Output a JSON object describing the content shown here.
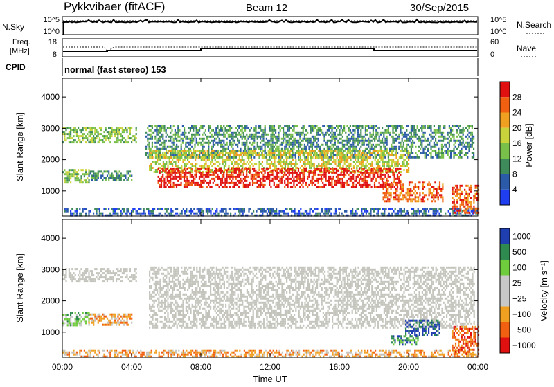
{
  "header": {
    "station": "Pykkvibaer (fitACF)",
    "beam": "Beam 12",
    "date": "30/Sep/2015"
  },
  "strip_panels": {
    "nsky": {
      "label": "N.Sky",
      "right_label": "N.Search",
      "tick_top": "10^5",
      "tick_bottom": "10^0",
      "right_tick_top": "10^5",
      "right_tick_bottom": "10^0"
    },
    "freq": {
      "label_line1": "Freq.",
      "label_line2": "[MHz]",
      "tick_top": "18",
      "tick_bottom": "8",
      "right_label": "Nave",
      "right_tick_top": "60",
      "right_tick_bottom": "0"
    },
    "cpid": {
      "label": "CPID",
      "text": "normal (fast stereo) 153"
    }
  },
  "colors": {
    "power_scale": [
      "#1f3ef0",
      "#2a5aa8",
      "#3f8a5a",
      "#79c04a",
      "#c9d43c",
      "#f0a020",
      "#f06010",
      "#e01010"
    ],
    "velocity_scale": [
      "#e01010",
      "#f06010",
      "#f0a020",
      "#c8c8c8",
      "#c8c8c8",
      "#6fcc3c",
      "#2f8a50",
      "#1f3eb0"
    ],
    "ground_scatter": "#c4c4bc"
  },
  "chart_data": [
    {
      "type": "heatmap",
      "name": "power",
      "ylabel": "Slant Range [km]",
      "yticks": [
        "1000",
        "2000",
        "3000",
        "4000"
      ],
      "ylim": [
        200,
        4600
      ],
      "xlim": [
        0,
        24
      ],
      "colorbar": {
        "label": "Power [dB]",
        "ticks": [
          "4",
          "8",
          "12",
          "16",
          "20",
          "24",
          "28"
        ],
        "range": [
          0,
          32
        ]
      },
      "echo_bands": [
        {
          "t0": 0.0,
          "t1": 4.3,
          "r0": 2550,
          "r1": 3050,
          "level": 3
        },
        {
          "t0": 0.0,
          "t1": 1.5,
          "r0": 1300,
          "r1": 1700,
          "level": 3
        },
        {
          "t0": 1.5,
          "t1": 4.0,
          "r0": 1350,
          "r1": 1650,
          "level": 2
        },
        {
          "t0": 0.0,
          "t1": 24.0,
          "r0": 250,
          "r1": 450,
          "level": 1
        },
        {
          "t0": 4.8,
          "t1": 23.8,
          "r0": 2100,
          "r1": 3100,
          "level": 2
        },
        {
          "t0": 5.0,
          "t1": 20.0,
          "r0": 1600,
          "r1": 2300,
          "level": 4
        },
        {
          "t0": 5.5,
          "t1": 19.5,
          "r0": 1150,
          "r1": 1750,
          "level": 7
        },
        {
          "t0": 18.5,
          "t1": 22.0,
          "r0": 700,
          "r1": 1300,
          "level": 6
        },
        {
          "t0": 22.5,
          "t1": 24.0,
          "r0": 300,
          "r1": 1200,
          "level": 6
        }
      ]
    },
    {
      "type": "heatmap",
      "name": "velocity",
      "ylabel": "Slant Range [km]",
      "yticks": [
        "1000",
        "2000",
        "3000",
        "4000"
      ],
      "ylim": [
        200,
        4600
      ],
      "xlim": [
        0,
        24
      ],
      "xlabel": "Time UT",
      "xticks": [
        "00:00",
        "04:00",
        "08:00",
        "12:00",
        "16:00",
        "20:00",
        "00:00"
      ],
      "colorbar": {
        "label": "Velocity [m s⁻¹]",
        "ticks": [
          "1000",
          "500",
          "100",
          "25",
          "−25",
          "−100",
          "−500",
          "−1000"
        ]
      },
      "echo_bands": [
        {
          "t0": 0.0,
          "t1": 4.3,
          "r0": 2600,
          "r1": 3050,
          "level": 3
        },
        {
          "t0": 0.0,
          "t1": 1.5,
          "r0": 1250,
          "r1": 1650,
          "level": 5
        },
        {
          "t0": 1.5,
          "t1": 4.0,
          "r0": 1250,
          "r1": 1600,
          "level": 2
        },
        {
          "t0": 0.0,
          "t1": 24.0,
          "r0": 250,
          "r1": 450,
          "level": 2
        },
        {
          "t0": 5.0,
          "t1": 23.8,
          "r0": 1150,
          "r1": 3100,
          "level": 3
        },
        {
          "t0": 19.8,
          "t1": 21.8,
          "r0": 900,
          "r1": 1400,
          "level": 7
        },
        {
          "t0": 19.0,
          "t1": 20.5,
          "r0": 600,
          "r1": 900,
          "level": 6
        },
        {
          "t0": 22.5,
          "t1": 24.0,
          "r0": 300,
          "r1": 1200,
          "level": 1
        }
      ]
    }
  ]
}
